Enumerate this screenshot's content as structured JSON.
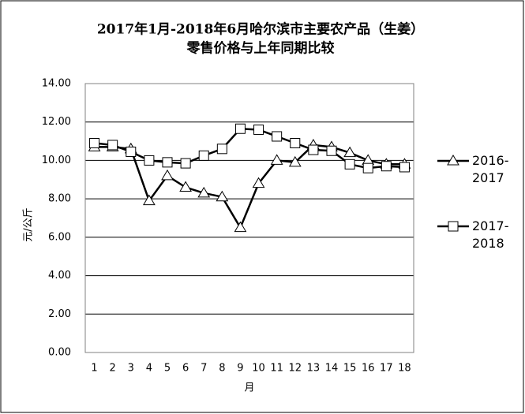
{
  "chart_data": {
    "type": "line",
    "title": "2017年1月-2018年6月哈尔滨市主要农产品（生姜）",
    "subtitle": "零售价格与上年同期比较",
    "y_label": "元/公斤",
    "x_label": "月",
    "categories": [
      "1",
      "2",
      "3",
      "4",
      "5",
      "6",
      "7",
      "8",
      "9",
      "10",
      "11",
      "12",
      "13",
      "14",
      "15",
      "16",
      "17",
      "18"
    ],
    "series": [
      {
        "name": "2016-2017",
        "color": "#000000",
        "marker": "triangle",
        "values": [
          10.7,
          10.7,
          10.6,
          7.9,
          9.2,
          8.6,
          8.3,
          8.1,
          6.5,
          8.8,
          10.0,
          9.9,
          10.8,
          10.7,
          10.4,
          10.0,
          9.8,
          9.8
        ]
      },
      {
        "name": "2017-2018",
        "color": "#000000",
        "marker": "square",
        "values": [
          10.9,
          10.8,
          10.45,
          10.0,
          9.9,
          9.85,
          10.25,
          10.6,
          11.65,
          11.6,
          11.25,
          10.9,
          10.55,
          10.5,
          9.8,
          9.6,
          9.7,
          9.65
        ]
      }
    ],
    "ylim": [
      0,
      14
    ],
    "yticks": [
      {
        "value": 0,
        "label": "0.00"
      },
      {
        "value": 2,
        "label": "2.00"
      },
      {
        "value": 4,
        "label": "4.00"
      },
      {
        "value": 6,
        "label": "6.00"
      },
      {
        "value": 8,
        "label": "8.00"
      },
      {
        "value": 10,
        "label": "10.00"
      },
      {
        "value": 12,
        "label": "12.00"
      },
      {
        "value": 14,
        "label": "14.00"
      }
    ],
    "grid": true,
    "legend": "right"
  }
}
